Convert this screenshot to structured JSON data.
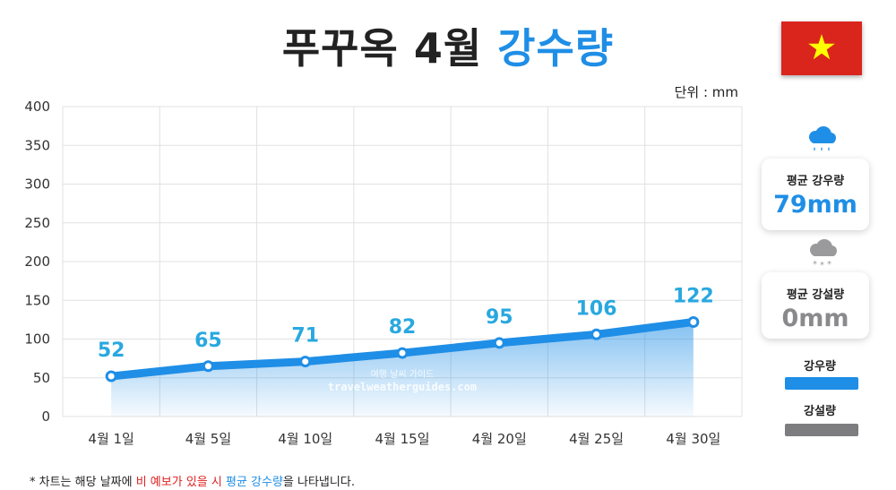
{
  "header": {
    "title_main": "푸꾸옥 4월",
    "title_accent": "강수량",
    "unit": "단위 : mm"
  },
  "colors": {
    "rain": "#1f8ee6",
    "rain_label": "#29a8e0",
    "snow": "#7d7d80",
    "flag_red": "#da251d",
    "flag_star": "#ffff00"
  },
  "chart_data": {
    "type": "area",
    "title": "푸꾸옥 4월 강수량",
    "xlabel": "",
    "ylabel": "",
    "unit": "mm",
    "ylim": [
      0,
      400
    ],
    "yticks": [
      0,
      50,
      100,
      150,
      200,
      250,
      300,
      350,
      400
    ],
    "grid": true,
    "categories": [
      "4월 1일",
      "4월 5일",
      "4월 10일",
      "4월 15일",
      "4월 20일",
      "4월 25일",
      "4월 30일"
    ],
    "series": [
      {
        "name": "강우량",
        "values": [
          52,
          65,
          71,
          82,
          95,
          106,
          122
        ]
      }
    ],
    "watermark": [
      "여행 날씨 가이드",
      "travelweatherguides.com"
    ]
  },
  "summary": {
    "rain_icon": "rain-cloud-icon",
    "snow_icon": "snow-cloud-icon",
    "avg_rain_label": "평균 강우량",
    "avg_rain_value": "79mm",
    "avg_snow_label": "평균 강설량",
    "avg_snow_value": "0mm"
  },
  "legend": {
    "rain_label": "강우량",
    "snow_label": "강설량"
  },
  "footnote": {
    "part1": "* 차트는 해당 날짜에 ",
    "part2": "비 예보가 있을 시",
    "part3": " ",
    "part4": "평균 강수량",
    "part5": "을 나타냅니다."
  }
}
